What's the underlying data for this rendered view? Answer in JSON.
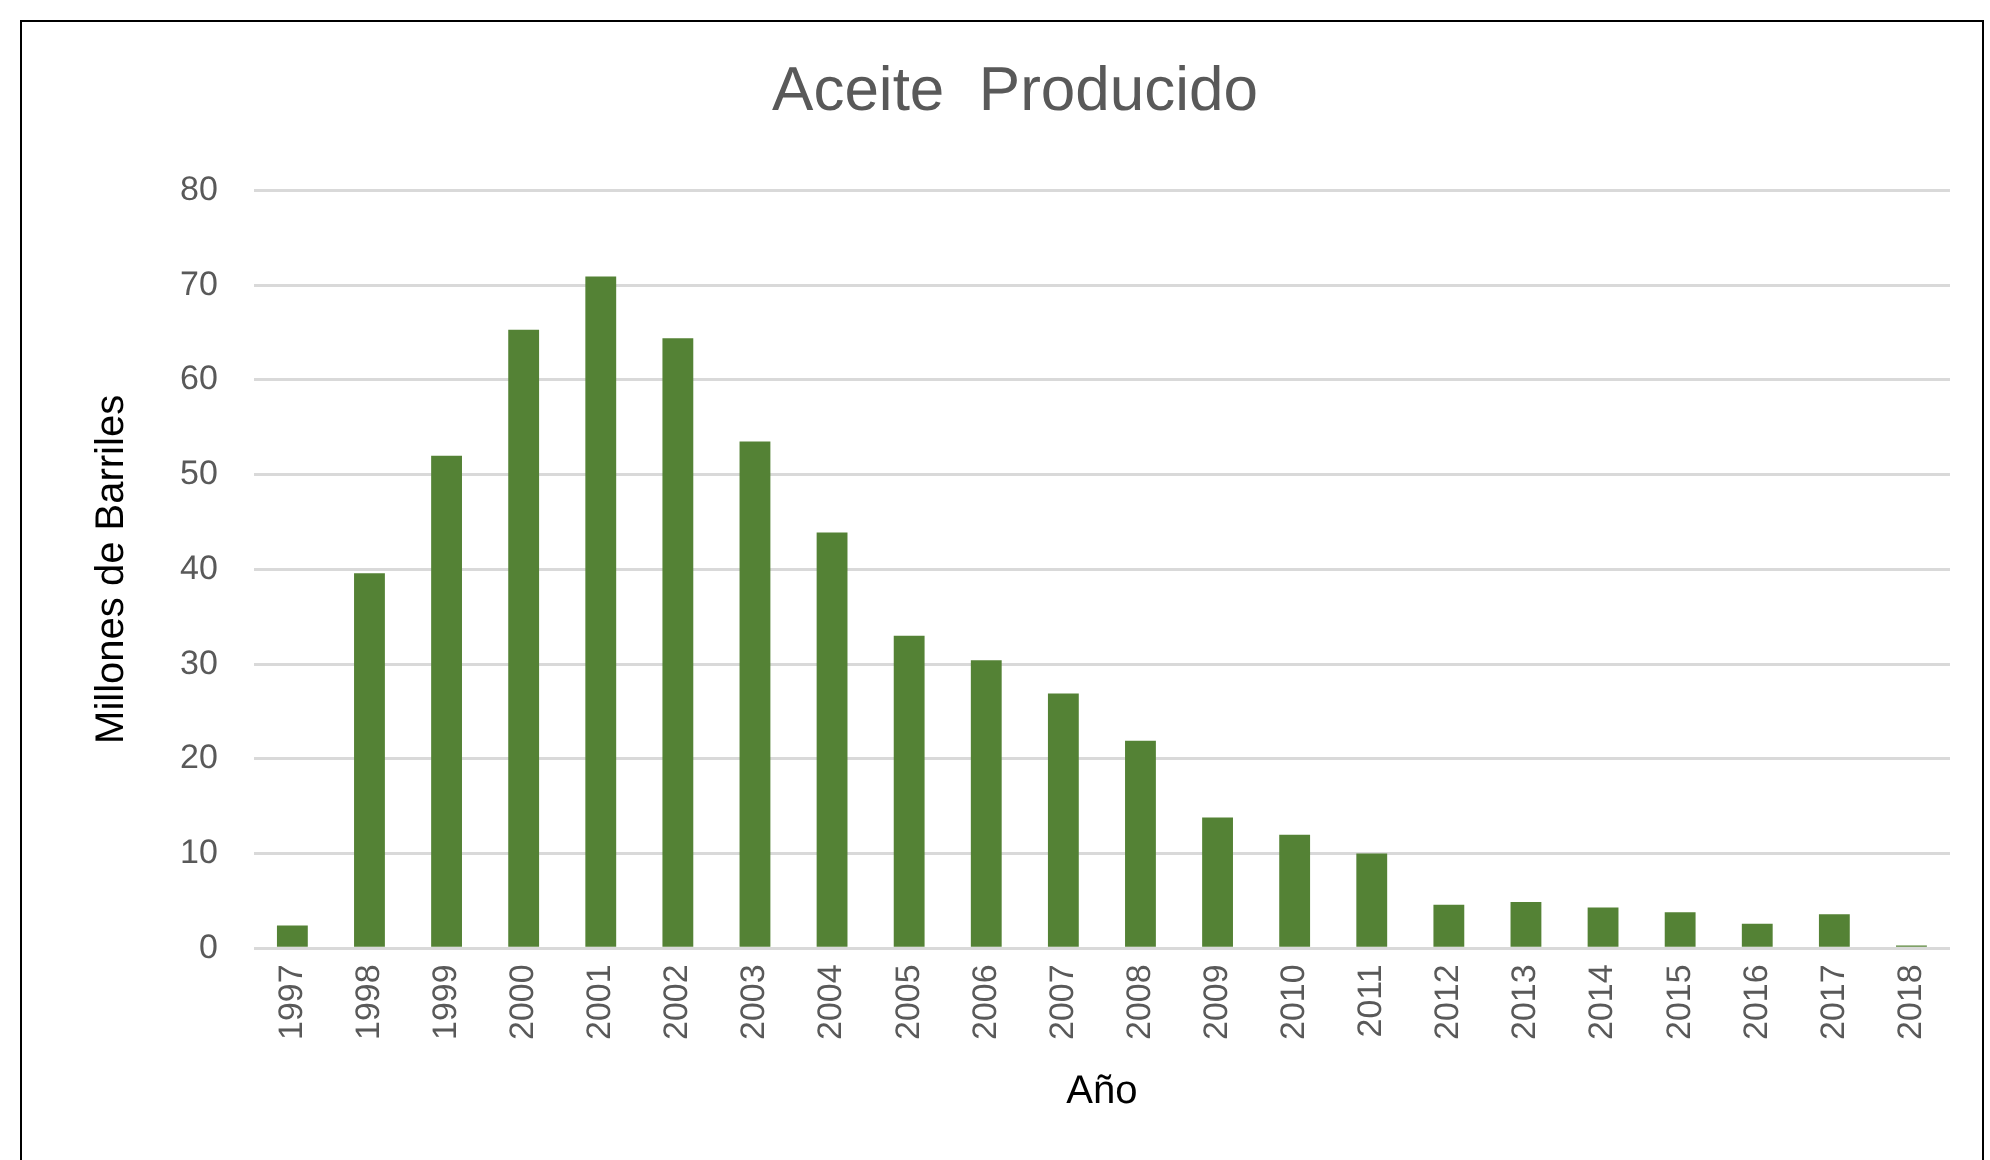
{
  "chart_data": {
    "type": "bar",
    "title": "Aceite  Producido",
    "xlabel": "Año",
    "ylabel": "Millones de Barriles",
    "categories": [
      "1997",
      "1998",
      "1999",
      "2000",
      "2001",
      "2002",
      "2003",
      "2004",
      "2005",
      "2006",
      "2007",
      "2008",
      "2009",
      "2010",
      "2011",
      "2012",
      "2013",
      "2014",
      "2015",
      "2016",
      "2017",
      "2018"
    ],
    "values": [
      2.4,
      39.6,
      52.0,
      65.3,
      70.9,
      64.4,
      53.5,
      43.9,
      33.0,
      30.4,
      26.9,
      21.9,
      13.8,
      12.0,
      10.0,
      4.6,
      4.9,
      4.3,
      3.8,
      2.6,
      3.6,
      0.3
    ],
    "color": "#548235",
    "ylim": [
      0,
      80
    ],
    "yticks": [
      0,
      10,
      20,
      30,
      40,
      50,
      60,
      70,
      80
    ],
    "grid": "y",
    "legend": false
  }
}
